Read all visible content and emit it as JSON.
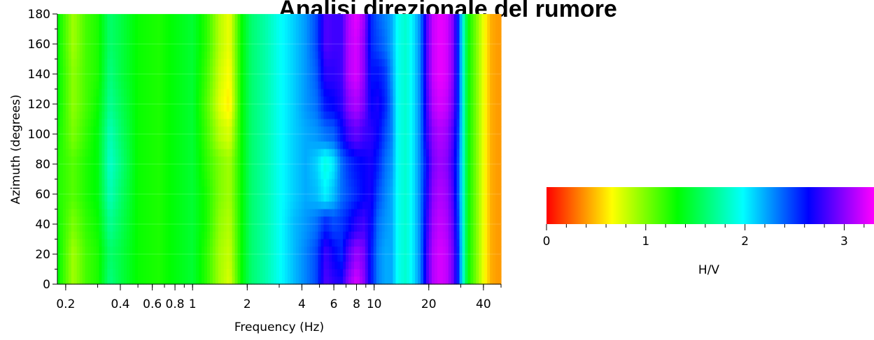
{
  "chart_data": {
    "type": "heatmap",
    "title": "Analisi direzionale del rumore",
    "xlabel": "Frequency (Hz)",
    "ylabel": "Azimuth (degrees)",
    "x_scale": "log",
    "xlim": [
      0.18,
      50
    ],
    "ylim": [
      0,
      180
    ],
    "x_ticks": [
      {
        "value": 0.2,
        "label": "0.2"
      },
      {
        "value": 0.4,
        "label": "0.4"
      },
      {
        "value": 0.6,
        "label": "0.6"
      },
      {
        "value": 0.8,
        "label": "0.8"
      },
      {
        "value": 1,
        "label": "1"
      },
      {
        "value": 2,
        "label": "2"
      },
      {
        "value": 4,
        "label": "4"
      },
      {
        "value": 6,
        "label": "6"
      },
      {
        "value": 8,
        "label": "8"
      },
      {
        "value": 10,
        "label": "10"
      },
      {
        "value": 20,
        "label": "20"
      },
      {
        "value": 40,
        "label": "40"
      }
    ],
    "y_ticks": [
      0,
      20,
      40,
      60,
      80,
      100,
      120,
      140,
      160,
      180
    ],
    "colorbar": {
      "label": "H/V",
      "range": [
        0,
        3.3
      ],
      "ticks": [
        0,
        1,
        2,
        3
      ],
      "colors": [
        "#ff0000",
        "#ffff00",
        "#00ff00",
        "#00ffff",
        "#0000ff",
        "#ff00ff"
      ]
    },
    "frequencies_hz": [
      0.18,
      0.22,
      0.26,
      0.3,
      0.35,
      0.4,
      0.5,
      0.65,
      0.8,
      1.0,
      1.2,
      1.4,
      1.6,
      1.85,
      2.1,
      2.5,
      3.0,
      3.6,
      4.2,
      4.8,
      5.4,
      6.0,
      6.6,
      7.2,
      8.0,
      8.8,
      9.6,
      10.5,
      11.5,
      12.5,
      13.5,
      15.0,
      16.5,
      18.0,
      19.5,
      21.0,
      23.0,
      25.0,
      27.0,
      29.0,
      31.0,
      33.0,
      36.0,
      40.0,
      44.0,
      48.0
    ],
    "hv_values": [
      {
        "azimuth": 0,
        "values": [
          1.35,
          0.9,
          1.15,
          1.25,
          1.65,
          1.5,
          1.3,
          1.25,
          1.35,
          1.45,
          1.2,
          0.9,
          0.75,
          1.3,
          1.6,
          1.75,
          1.95,
          2.15,
          2.3,
          2.45,
          2.85,
          2.75,
          2.7,
          3.0,
          3.2,
          3.0,
          2.6,
          2.3,
          2.2,
          2.2,
          1.95,
          1.85,
          2.05,
          2.3,
          2.8,
          3.1,
          3.2,
          3.15,
          2.95,
          2.55,
          1.85,
          1.3,
          1.05,
          0.7,
          0.45,
          0.4
        ]
      },
      {
        "azimuth": 20,
        "values": [
          1.35,
          0.9,
          1.15,
          1.25,
          1.6,
          1.5,
          1.3,
          1.25,
          1.35,
          1.45,
          1.2,
          0.9,
          0.8,
          1.3,
          1.6,
          1.75,
          1.95,
          2.15,
          2.3,
          2.45,
          2.8,
          2.65,
          2.55,
          2.85,
          3.05,
          2.95,
          2.6,
          2.3,
          2.2,
          2.2,
          1.95,
          1.85,
          2.05,
          2.3,
          2.8,
          3.1,
          3.2,
          3.15,
          2.95,
          2.55,
          1.85,
          1.3,
          1.05,
          0.7,
          0.45,
          0.4
        ]
      },
      {
        "azimuth": 40,
        "values": [
          1.3,
          1.0,
          1.2,
          1.3,
          1.7,
          1.55,
          1.3,
          1.25,
          1.35,
          1.45,
          1.25,
          0.95,
          0.85,
          1.3,
          1.6,
          1.75,
          1.95,
          2.15,
          2.25,
          2.35,
          2.55,
          2.45,
          2.5,
          2.6,
          2.75,
          2.8,
          2.65,
          2.35,
          2.25,
          2.2,
          1.95,
          1.85,
          2.05,
          2.3,
          2.75,
          3.05,
          3.15,
          3.1,
          2.9,
          2.5,
          1.85,
          1.3,
          1.05,
          0.7,
          0.45,
          0.4
        ]
      },
      {
        "azimuth": 60,
        "values": [
          1.25,
          1.1,
          1.25,
          1.35,
          1.8,
          1.6,
          1.3,
          1.25,
          1.35,
          1.45,
          1.25,
          1.0,
          0.9,
          1.3,
          1.6,
          1.75,
          1.95,
          2.1,
          2.2,
          2.15,
          2.0,
          2.15,
          2.35,
          2.45,
          2.55,
          2.65,
          2.7,
          2.45,
          2.3,
          2.2,
          1.95,
          1.85,
          2.05,
          2.3,
          2.7,
          3.0,
          3.1,
          3.05,
          2.85,
          2.45,
          1.85,
          1.3,
          1.05,
          0.7,
          0.45,
          0.4
        ]
      },
      {
        "azimuth": 80,
        "values": [
          1.25,
          1.1,
          1.25,
          1.35,
          1.85,
          1.65,
          1.3,
          1.25,
          1.35,
          1.45,
          1.2,
          1.0,
          0.9,
          1.3,
          1.6,
          1.75,
          1.95,
          2.1,
          2.2,
          2.1,
          1.9,
          2.05,
          2.35,
          2.5,
          2.6,
          2.65,
          2.7,
          2.55,
          2.35,
          2.25,
          1.95,
          1.85,
          2.05,
          2.3,
          2.65,
          2.95,
          3.05,
          3.0,
          2.8,
          2.45,
          1.85,
          1.3,
          1.05,
          0.7,
          0.45,
          0.4
        ]
      },
      {
        "azimuth": 100,
        "values": [
          1.3,
          1.0,
          1.2,
          1.35,
          1.8,
          1.6,
          1.3,
          1.25,
          1.35,
          1.45,
          1.15,
          0.85,
          0.75,
          1.3,
          1.6,
          1.75,
          1.95,
          2.1,
          2.2,
          2.25,
          2.35,
          2.4,
          2.6,
          2.8,
          2.9,
          2.8,
          2.75,
          2.65,
          2.45,
          2.3,
          1.95,
          1.85,
          2.05,
          2.3,
          2.75,
          3.0,
          3.1,
          3.05,
          2.85,
          2.5,
          1.85,
          1.3,
          1.05,
          0.7,
          0.45,
          0.4
        ]
      },
      {
        "azimuth": 120,
        "values": [
          1.35,
          0.95,
          1.15,
          1.3,
          1.7,
          1.55,
          1.3,
          1.25,
          1.35,
          1.45,
          1.1,
          0.75,
          0.6,
          1.3,
          1.6,
          1.75,
          1.95,
          2.1,
          2.25,
          2.35,
          2.6,
          2.65,
          2.75,
          3.0,
          3.1,
          2.95,
          2.65,
          2.7,
          2.55,
          2.3,
          1.95,
          1.85,
          2.05,
          2.3,
          2.8,
          3.1,
          3.2,
          3.15,
          2.95,
          2.55,
          1.85,
          1.3,
          1.05,
          0.7,
          0.45,
          0.4
        ]
      },
      {
        "azimuth": 140,
        "values": [
          1.35,
          0.95,
          1.15,
          1.25,
          1.65,
          1.5,
          1.3,
          1.25,
          1.35,
          1.45,
          1.15,
          0.8,
          0.65,
          1.3,
          1.6,
          1.75,
          1.95,
          2.1,
          2.25,
          2.4,
          2.75,
          2.75,
          2.8,
          3.1,
          3.2,
          3.0,
          2.6,
          2.6,
          2.5,
          2.25,
          1.95,
          1.85,
          2.05,
          2.3,
          2.85,
          3.15,
          3.25,
          3.2,
          3.0,
          2.55,
          1.85,
          1.3,
          1.05,
          0.7,
          0.45,
          0.4
        ]
      },
      {
        "azimuth": 160,
        "values": [
          1.35,
          0.9,
          1.15,
          1.25,
          1.6,
          1.5,
          1.3,
          1.25,
          1.35,
          1.45,
          1.2,
          0.85,
          0.7,
          1.3,
          1.6,
          1.75,
          1.95,
          2.1,
          2.25,
          2.45,
          2.85,
          2.8,
          2.8,
          3.1,
          3.2,
          3.0,
          2.55,
          2.45,
          2.35,
          2.2,
          1.95,
          1.85,
          2.05,
          2.3,
          2.85,
          3.15,
          3.25,
          3.2,
          3.0,
          2.55,
          1.85,
          1.3,
          1.05,
          0.7,
          0.45,
          0.4
        ]
      },
      {
        "azimuth": 180,
        "values": [
          1.35,
          0.9,
          1.15,
          1.25,
          1.6,
          1.5,
          1.3,
          1.25,
          1.35,
          1.45,
          1.2,
          0.85,
          0.7,
          1.3,
          1.6,
          1.75,
          1.95,
          2.1,
          2.25,
          2.45,
          2.85,
          2.8,
          2.8,
          3.1,
          3.25,
          3.05,
          2.55,
          2.4,
          2.3,
          2.2,
          1.95,
          1.85,
          2.05,
          2.3,
          2.85,
          3.15,
          3.25,
          3.2,
          3.0,
          2.55,
          1.85,
          1.3,
          1.05,
          0.7,
          0.45,
          0.4
        ]
      }
    ]
  }
}
